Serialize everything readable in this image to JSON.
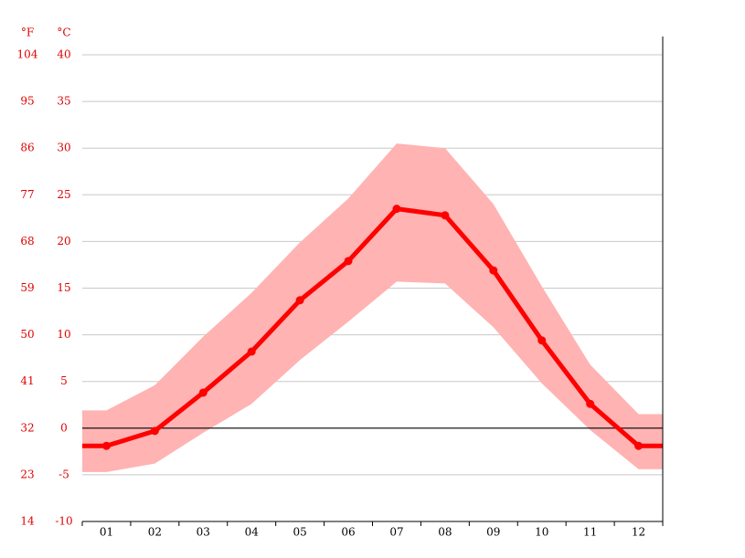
{
  "chart_data": {
    "type": "line_band",
    "y_unit_label": "°C",
    "y2_unit_label": "°F",
    "categories": [
      "01",
      "02",
      "03",
      "04",
      "05",
      "06",
      "07",
      "08",
      "09",
      "10",
      "11",
      "12"
    ],
    "line": {
      "color": "#ff0000",
      "values": [
        -1.9,
        -0.3,
        3.8,
        8.2,
        13.7,
        17.9,
        23.5,
        22.8,
        16.9,
        9.4,
        2.6,
        -1.9
      ]
    },
    "band": {
      "color": "#ffb3b3",
      "upper": [
        1.9,
        4.6,
        9.8,
        14.5,
        19.9,
        24.6,
        30.5,
        30.0,
        24.0,
        15.2,
        6.8,
        1.5
      ],
      "lower": [
        -4.7,
        -3.8,
        -0.5,
        2.6,
        7.3,
        11.4,
        15.7,
        15.5,
        10.8,
        4.8,
        -0.2,
        -4.4
      ]
    },
    "ylim": [
      -10,
      40
    ],
    "yticks": [
      -10,
      -5,
      0,
      5,
      10,
      15,
      20,
      25,
      30,
      35,
      40
    ],
    "y2lim": [
      14,
      104
    ],
    "y2ticks": [
      14,
      23,
      32,
      41,
      50,
      59,
      68,
      77,
      86,
      95,
      104
    ],
    "grid": true
  }
}
